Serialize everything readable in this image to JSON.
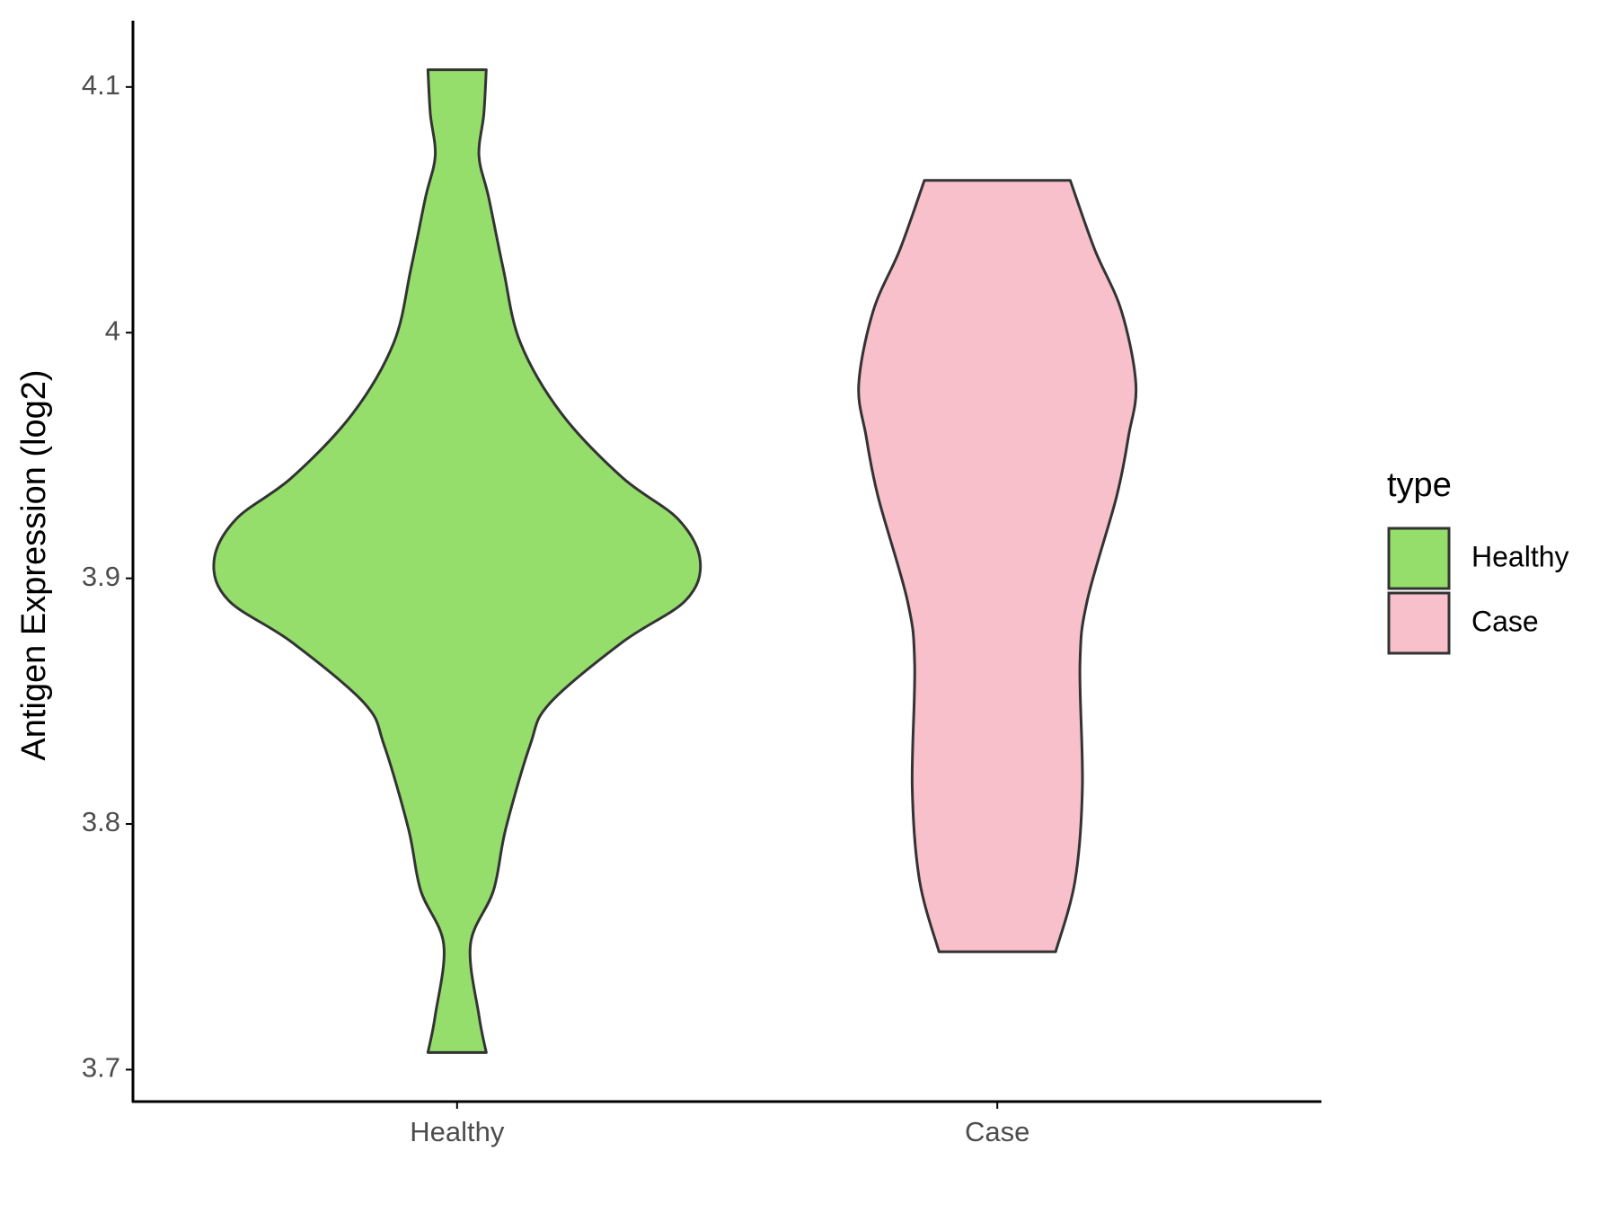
{
  "chart_data": {
    "type": "violin",
    "y_label": "Antigen Expression (log2)",
    "categories": [
      "Healthy",
      "Case"
    ],
    "ylim": [
      3.687,
      4.127
    ],
    "yticks": [
      3.7,
      3.8,
      3.9,
      4.0,
      4.1
    ],
    "legend_title": "type",
    "legend": "right",
    "series": [
      {
        "name": "Healthy",
        "color": "#95de6b",
        "y": [
          3.707,
          3.722,
          3.751,
          3.773,
          3.798,
          3.832,
          3.849,
          3.874,
          3.891,
          3.907,
          3.924,
          3.941,
          3.967,
          3.996,
          4.026,
          4.055,
          4.072,
          4.089,
          4.107
        ],
        "width": [
          0.12,
          0.09,
          0.055,
          0.15,
          0.2,
          0.3,
          0.38,
          0.68,
          0.94,
          1,
          0.91,
          0.68,
          0.43,
          0.26,
          0.19,
          0.13,
          0.09,
          0.11,
          0.12
        ]
      },
      {
        "name": "Case",
        "color": "#f7c0cb",
        "y": [
          3.748,
          3.777,
          3.815,
          3.865,
          3.891,
          3.933,
          3.958,
          3.979,
          4.009,
          4.034,
          4.062
        ],
        "width": [
          0.24,
          0.32,
          0.35,
          0.34,
          0.37,
          0.49,
          0.54,
          0.57,
          0.51,
          0.4,
          0.3
        ]
      }
    ]
  }
}
